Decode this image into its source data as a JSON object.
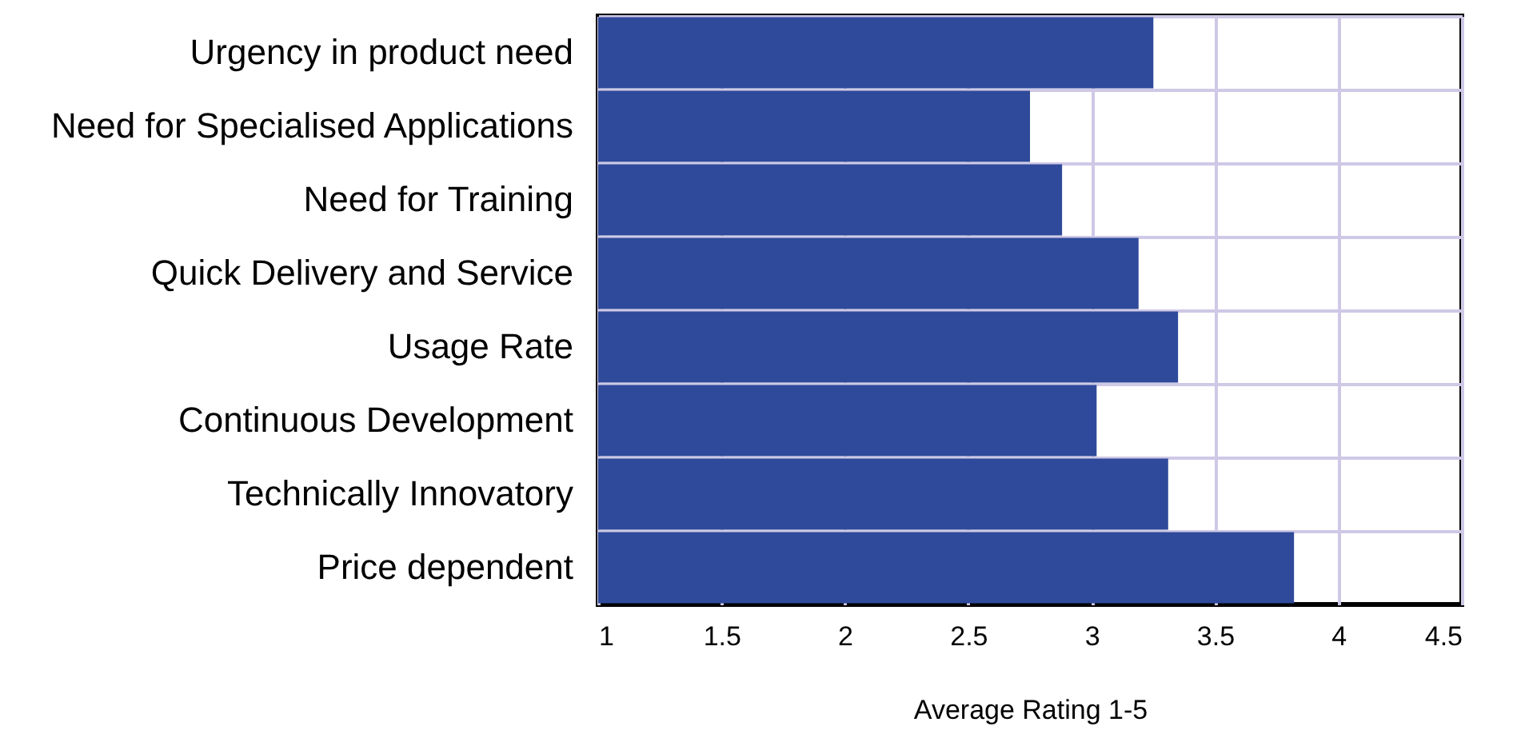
{
  "chart_data": {
    "type": "bar",
    "orientation": "horizontal",
    "xlabel": "Average Rating 1-5",
    "categories": [
      "Urgency in product need",
      "Need for Specialised Applications",
      "Need for Training",
      "Quick Delivery and Service",
      "Usage Rate",
      "Continuous Development",
      "Technically Innovatory",
      "Price dependent"
    ],
    "values": [
      3.25,
      2.75,
      2.88,
      3.19,
      3.35,
      3.02,
      3.31,
      3.82
    ],
    "color": "#2f4a9a",
    "xlim": [
      1,
      4.5
    ],
    "xticks": [
      1,
      1.5,
      2,
      2.5,
      3,
      3.5,
      4,
      4.5
    ],
    "grid": true
  }
}
